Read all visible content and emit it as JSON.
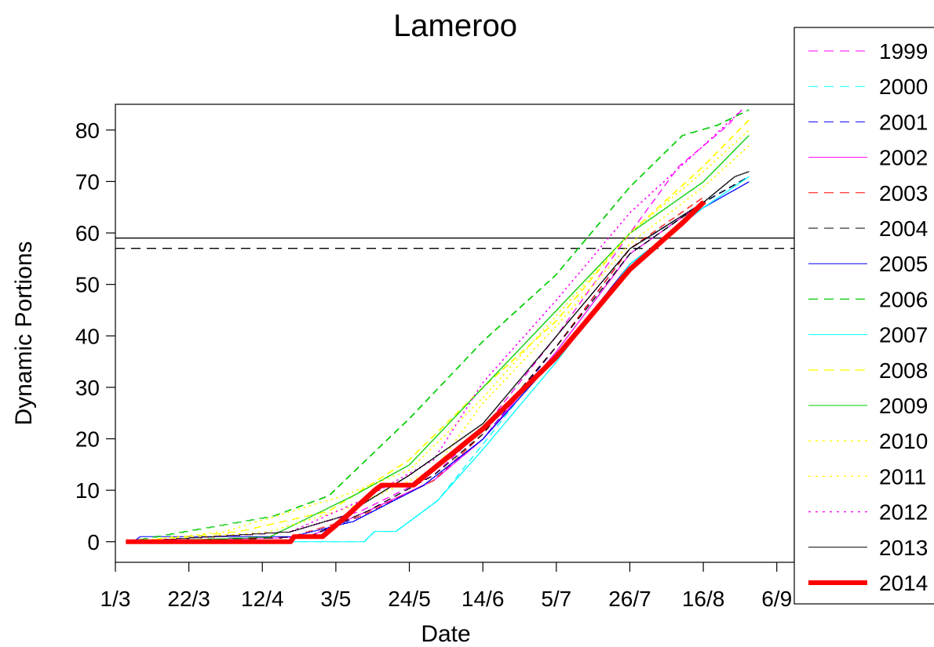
{
  "chart_data": {
    "type": "line",
    "title": "Lameroo",
    "xlabel": "Date",
    "ylabel": "Dynamic Portions",
    "x_unit": "date (day/month)",
    "xlim": [
      "1/3",
      "11/9"
    ],
    "ylim": [
      -4,
      85
    ],
    "x_ticks": [
      "1/3",
      "22/3",
      "12/4",
      "3/5",
      "24/5",
      "14/6",
      "5/7",
      "26/7",
      "16/8",
      "6/9"
    ],
    "y_ticks": [
      0,
      10,
      20,
      30,
      40,
      50,
      60,
      70,
      80
    ],
    "grid": false,
    "legend_position": "right, outside plot",
    "reference_lines": [
      {
        "y": 59,
        "style": "solid",
        "color": "#000000"
      },
      {
        "y": 57,
        "style": "dashed",
        "color": "#000000"
      }
    ],
    "series": [
      {
        "name": "1999",
        "color": "#ff00ff",
        "dash": "dashed",
        "width": 1,
        "points": [
          [
            "4/3",
            0
          ],
          [
            "20/4",
            2
          ],
          [
            "10/5",
            6
          ],
          [
            "31/5",
            13
          ],
          [
            "14/6",
            22
          ],
          [
            "5/7",
            40
          ],
          [
            "26/7",
            60
          ],
          [
            "9/8",
            73
          ],
          [
            "23/8",
            81
          ],
          [
            "27/8",
            84
          ]
        ]
      },
      {
        "name": "2000",
        "color": "#00ffff",
        "dash": "dashed",
        "width": 1,
        "points": [
          [
            "4/3",
            0
          ],
          [
            "11/5",
            0
          ],
          [
            "14/5",
            2
          ],
          [
            "20/5",
            2
          ],
          [
            "1/6",
            8
          ],
          [
            "14/6",
            19
          ],
          [
            "5/7",
            37
          ],
          [
            "26/7",
            56
          ],
          [
            "16/8",
            66
          ],
          [
            "29/8",
            71
          ]
        ]
      },
      {
        "name": "2001",
        "color": "#0000ff",
        "dash": "dashed",
        "width": 1,
        "points": [
          [
            "4/3",
            0
          ],
          [
            "25/4",
            1
          ],
          [
            "10/5",
            5
          ],
          [
            "31/5",
            12
          ],
          [
            "14/6",
            20
          ],
          [
            "5/7",
            38
          ],
          [
            "26/7",
            57
          ],
          [
            "16/8",
            66
          ],
          [
            "29/8",
            71
          ]
        ]
      },
      {
        "name": "2002",
        "color": "#ff00ff",
        "dash": "solid",
        "width": 1,
        "points": [
          [
            "4/3",
            0
          ],
          [
            "25/4",
            1
          ],
          [
            "12/5",
            6
          ],
          [
            "31/5",
            12
          ],
          [
            "14/6",
            20
          ],
          [
            "5/7",
            37
          ],
          [
            "26/7",
            56
          ],
          [
            "16/8",
            66
          ]
        ]
      },
      {
        "name": "2003",
        "color": "#ff0000",
        "dash": "dashed",
        "width": 1,
        "points": [
          [
            "4/3",
            0
          ],
          [
            "20/4",
            1
          ],
          [
            "10/5",
            5
          ],
          [
            "31/5",
            12
          ],
          [
            "14/6",
            21
          ],
          [
            "5/7",
            38
          ],
          [
            "26/7",
            57
          ],
          [
            "16/8",
            67
          ]
        ]
      },
      {
        "name": "2004",
        "color": "#000000",
        "dash": "dashed",
        "width": 1,
        "points": [
          [
            "4/3",
            0
          ],
          [
            "25/4",
            1
          ],
          [
            "12/5",
            6
          ],
          [
            "31/5",
            13
          ],
          [
            "14/6",
            21
          ],
          [
            "5/7",
            38
          ],
          [
            "26/7",
            56
          ],
          [
            "16/8",
            66
          ],
          [
            "29/8",
            71
          ]
        ]
      },
      {
        "name": "2005",
        "color": "#0000ff",
        "dash": "solid",
        "width": 1,
        "points": [
          [
            "6/3",
            0
          ],
          [
            "8/3",
            1
          ],
          [
            "20/4",
            1
          ],
          [
            "8/5",
            4
          ],
          [
            "28/5",
            11
          ],
          [
            "14/6",
            20
          ],
          [
            "5/7",
            36
          ],
          [
            "26/7",
            54
          ],
          [
            "16/8",
            65
          ],
          [
            "29/8",
            70
          ]
        ]
      },
      {
        "name": "2006",
        "color": "#00cc00",
        "dash": "dashed",
        "width": 1.3,
        "points": [
          [
            "4/3",
            0
          ],
          [
            "15/4",
            5
          ],
          [
            "1/5",
            9
          ],
          [
            "24/5",
            24
          ],
          [
            "14/6",
            39
          ],
          [
            "5/7",
            52
          ],
          [
            "26/7",
            69
          ],
          [
            "10/8",
            79
          ],
          [
            "20/8",
            81
          ],
          [
            "29/8",
            84
          ]
        ]
      },
      {
        "name": "2007",
        "color": "#00ffff",
        "dash": "solid",
        "width": 1,
        "points": [
          [
            "4/3",
            0
          ],
          [
            "11/5",
            0
          ],
          [
            "14/5",
            2
          ],
          [
            "20/5",
            2
          ],
          [
            "1/6",
            8
          ],
          [
            "14/6",
            18
          ],
          [
            "5/7",
            35
          ],
          [
            "26/7",
            54
          ],
          [
            "16/8",
            65
          ],
          [
            "29/8",
            71
          ]
        ]
      },
      {
        "name": "2008",
        "color": "#ffff00",
        "dash": "dashed",
        "width": 1.3,
        "points": [
          [
            "4/3",
            0
          ],
          [
            "5/4",
            2
          ],
          [
            "1/5",
            6
          ],
          [
            "24/5",
            16
          ],
          [
            "14/6",
            30
          ],
          [
            "5/7",
            43
          ],
          [
            "26/7",
            60
          ],
          [
            "16/8",
            73
          ],
          [
            "29/8",
            82
          ]
        ]
      },
      {
        "name": "2009",
        "color": "#00cc00",
        "dash": "solid",
        "width": 1,
        "points": [
          [
            "4/3",
            0
          ],
          [
            "14/4",
            1
          ],
          [
            "8/5",
            9
          ],
          [
            "24/5",
            15
          ],
          [
            "14/6",
            30
          ],
          [
            "5/7",
            45
          ],
          [
            "26/7",
            60
          ],
          [
            "16/8",
            70
          ],
          [
            "29/8",
            79
          ]
        ]
      },
      {
        "name": "2010",
        "color": "#ffff00",
        "dash": "dotted",
        "width": 1.3,
        "points": [
          [
            "4/3",
            0
          ],
          [
            "14/4",
            2
          ],
          [
            "8/5",
            7
          ],
          [
            "31/5",
            14
          ],
          [
            "14/6",
            27
          ],
          [
            "5/7",
            42
          ],
          [
            "26/7",
            58
          ],
          [
            "16/8",
            69
          ],
          [
            "29/8",
            77
          ]
        ]
      },
      {
        "name": "2011",
        "color": "#ffff00",
        "dash": "dotted",
        "width": 1.3,
        "points": [
          [
            "4/3",
            0
          ],
          [
            "1/4",
            2
          ],
          [
            "5/5",
            9
          ],
          [
            "24/5",
            14
          ],
          [
            "14/6",
            28
          ],
          [
            "5/7",
            44
          ],
          [
            "26/7",
            60
          ],
          [
            "16/8",
            72
          ],
          [
            "29/8",
            80
          ]
        ]
      },
      {
        "name": "2012",
        "color": "#ff00ff",
        "dash": "dotted",
        "width": 1.3,
        "points": [
          [
            "4/3",
            0
          ],
          [
            "20/4",
            2
          ],
          [
            "10/5",
            8
          ],
          [
            "31/5",
            16
          ],
          [
            "14/6",
            31
          ],
          [
            "5/7",
            47
          ],
          [
            "26/7",
            64
          ],
          [
            "16/8",
            77
          ],
          [
            "27/8",
            84
          ]
        ]
      },
      {
        "name": "2013",
        "color": "#000000",
        "dash": "solid",
        "width": 1,
        "points": [
          [
            "4/3",
            0
          ],
          [
            "20/4",
            2
          ],
          [
            "5/5",
            5
          ],
          [
            "24/5",
            13
          ],
          [
            "14/6",
            23
          ],
          [
            "5/7",
            40
          ],
          [
            "26/7",
            57
          ],
          [
            "16/8",
            66
          ],
          [
            "25/8",
            71
          ],
          [
            "29/8",
            72
          ]
        ]
      },
      {
        "name": "2014",
        "color": "#ff0000",
        "dash": "solid",
        "width": 6,
        "points": [
          [
            "4/3",
            0
          ],
          [
            "20/4",
            0
          ],
          [
            "21/4",
            1
          ],
          [
            "29/4",
            1
          ],
          [
            "6/5",
            5
          ],
          [
            "14/5",
            10
          ],
          [
            "16/5",
            11
          ],
          [
            "25/5",
            11
          ],
          [
            "14/6",
            22
          ],
          [
            "26/6",
            30
          ],
          [
            "5/7",
            36
          ],
          [
            "26/7",
            53
          ],
          [
            "10/8",
            62
          ],
          [
            "16/8",
            66
          ]
        ]
      }
    ]
  }
}
